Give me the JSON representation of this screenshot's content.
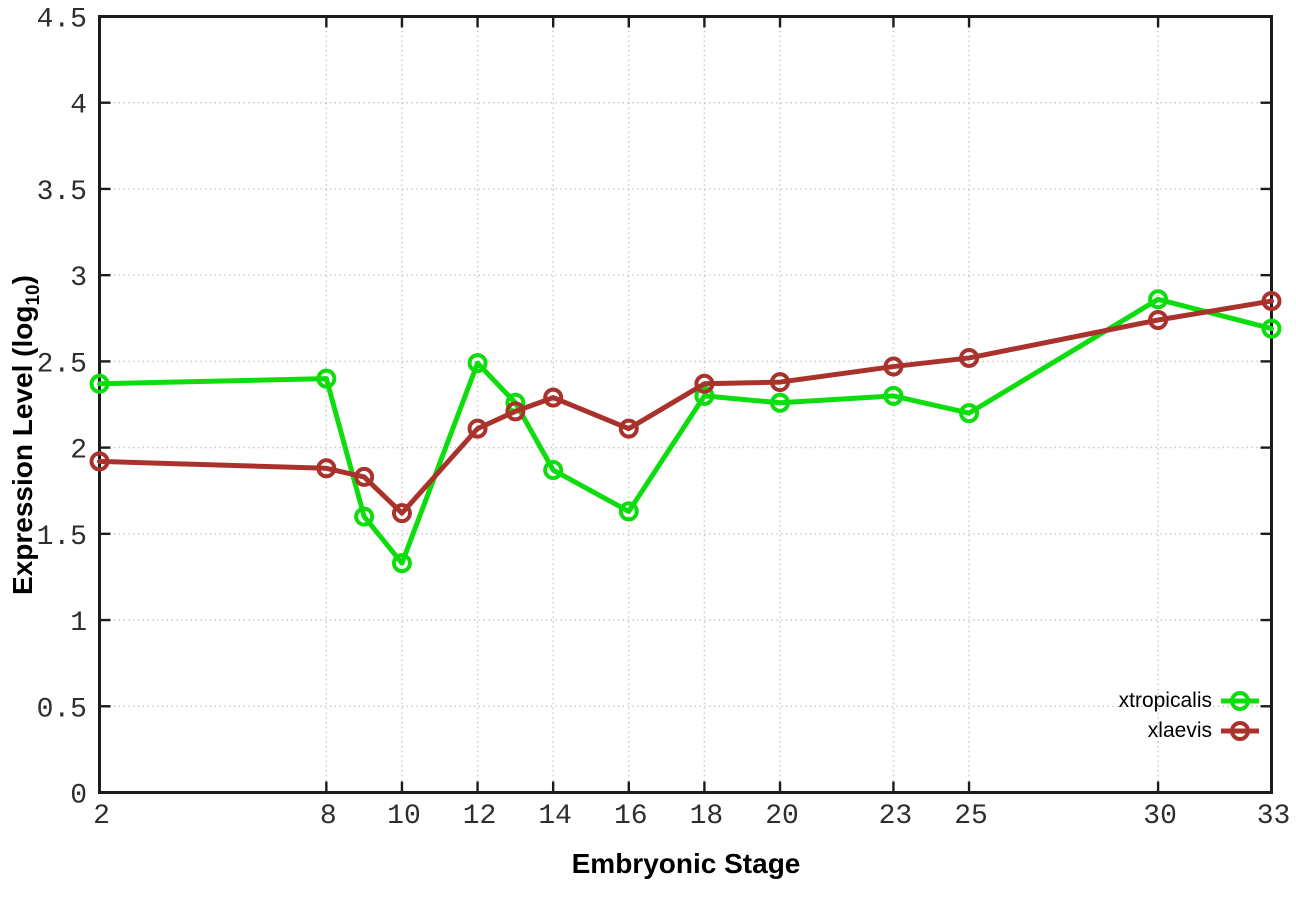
{
  "chart_data": {
    "type": "line",
    "title": "",
    "xlabel": "Embryonic Stage",
    "ylabel": {
      "prefix": "Expression Level (log",
      "subscript": "10",
      "suffix": ")"
    },
    "x": [
      2,
      8,
      9,
      10,
      12,
      13,
      14,
      16,
      18,
      20,
      23,
      25,
      30,
      33
    ],
    "series": [
      {
        "name": "xtropicalis",
        "color": "#0ddd0d",
        "values": [
          2.37,
          2.4,
          1.6,
          1.33,
          2.49,
          2.26,
          1.87,
          1.63,
          2.3,
          2.26,
          2.3,
          2.2,
          2.86,
          2.69
        ]
      },
      {
        "name": "xlaevis",
        "color": "#a9332c",
        "values": [
          1.92,
          1.88,
          1.83,
          1.62,
          2.11,
          2.21,
          2.29,
          2.11,
          2.37,
          2.38,
          2.47,
          2.52,
          2.74,
          2.85
        ]
      }
    ],
    "xticks": [
      2,
      8,
      10,
      12,
      14,
      16,
      18,
      20,
      23,
      25,
      30,
      33
    ],
    "yticks": [
      0,
      0.5,
      1,
      1.5,
      2,
      2.5,
      3,
      3.5,
      4,
      4.5
    ],
    "ytick_labels": [
      "0",
      "0.5",
      "1",
      "1.5",
      "2",
      "2.5",
      "3",
      "3.5",
      "4",
      "4.5"
    ],
    "xlim": [
      2,
      33
    ],
    "ylim": [
      0,
      4.5
    ],
    "grid": true,
    "legend_position": "inside-bottom-right"
  },
  "style_colors": {
    "background": "#ffffff",
    "plot_border": "#1c1c1c",
    "gridline": "#c2c2c2",
    "tick_text": "#2e2e2e",
    "axis_title_text": "#000000"
  }
}
